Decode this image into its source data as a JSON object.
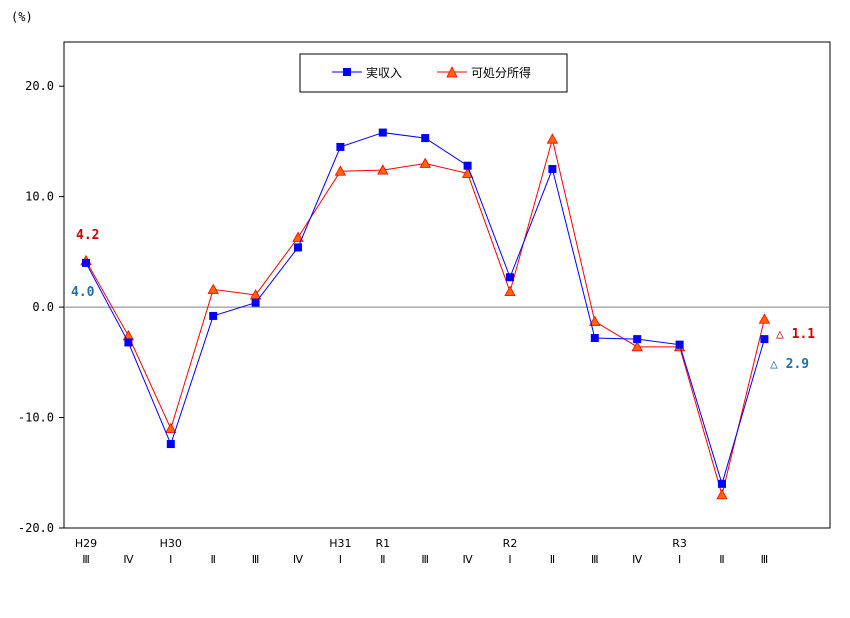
{
  "chart_data": {
    "type": "line",
    "ylabel": "(%)",
    "ylim": [
      -20,
      24
    ],
    "yticks": [
      -20,
      -10,
      0,
      10,
      20
    ],
    "ytick_labels": [
      "-20.0",
      "-10.0",
      "0.0",
      "10.0",
      "20.0"
    ],
    "categories": [
      {
        "year": "H29",
        "quarter": "Ⅲ"
      },
      {
        "year": "",
        "quarter": "Ⅳ"
      },
      {
        "year": "H30",
        "quarter": "Ⅰ"
      },
      {
        "year": "",
        "quarter": "Ⅱ"
      },
      {
        "year": "",
        "quarter": "Ⅲ"
      },
      {
        "year": "",
        "quarter": "Ⅳ"
      },
      {
        "year": "H31",
        "quarter": "Ⅰ"
      },
      {
        "year": "R1",
        "quarter": "Ⅱ"
      },
      {
        "year": "",
        "quarter": "Ⅲ"
      },
      {
        "year": "",
        "quarter": "Ⅳ"
      },
      {
        "year": "R2",
        "quarter": "Ⅰ"
      },
      {
        "year": "",
        "quarter": "Ⅱ"
      },
      {
        "year": "",
        "quarter": "Ⅲ"
      },
      {
        "year": "",
        "quarter": "Ⅳ"
      },
      {
        "year": "R3",
        "quarter": "Ⅰ"
      },
      {
        "year": "",
        "quarter": "Ⅱ"
      },
      {
        "year": "",
        "quarter": "Ⅲ"
      }
    ],
    "series": [
      {
        "name": "実収入",
        "color": "#0000ff",
        "marker": "square",
        "values": [
          4.0,
          -3.2,
          -12.4,
          -0.8,
          0.4,
          5.4,
          14.5,
          15.8,
          15.3,
          12.8,
          2.7,
          12.5,
          -2.8,
          -2.9,
          -3.4,
          -16.0,
          -2.9
        ]
      },
      {
        "name": "可処分所得",
        "color": "#ff0000",
        "marker_fill": "#ff6600",
        "marker": "triangle",
        "values": [
          4.2,
          -2.6,
          -11.0,
          1.6,
          1.1,
          6.3,
          12.3,
          12.4,
          13.0,
          12.1,
          1.4,
          15.2,
          -1.3,
          -3.6,
          -3.6,
          -17.0,
          -1.1
        ]
      }
    ],
    "annotations": [
      {
        "text": "4.2",
        "color": "#cc0000"
      },
      {
        "text": "4.0",
        "color": "#1f6fa8"
      },
      {
        "text": "△ 1.1",
        "color": "#cc0000"
      },
      {
        "text": "△ 2.9",
        "color": "#1f6fa8"
      }
    ],
    "legend_position": "top-center",
    "grid": false
  }
}
